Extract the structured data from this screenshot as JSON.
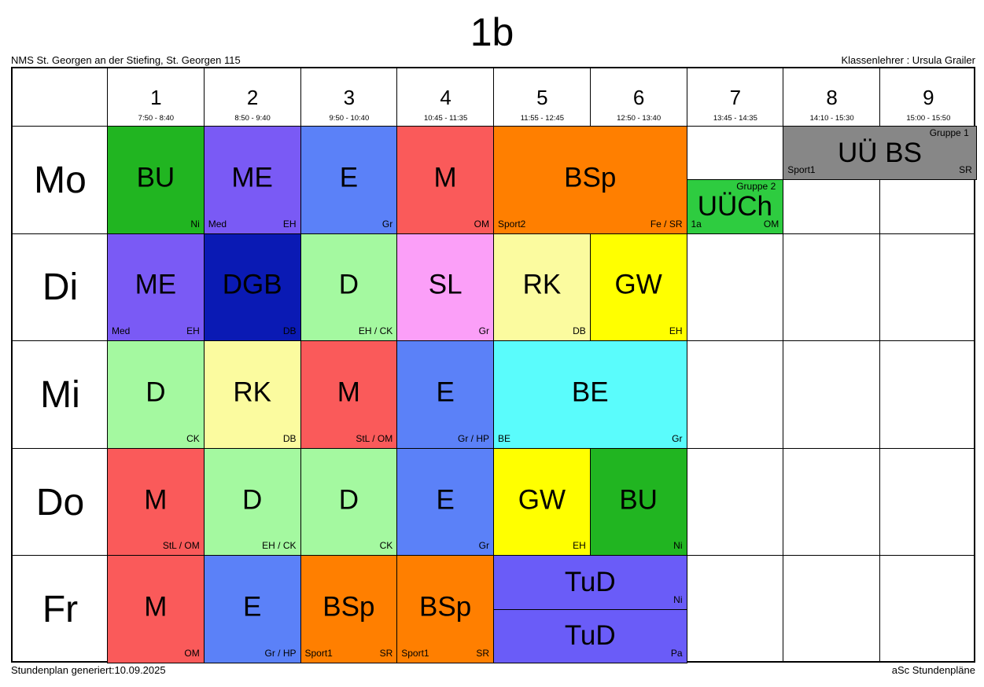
{
  "title": "1b",
  "school": "NMS St. Georgen an der Stiefing, St. Georgen 115",
  "teacher": "Klassenlehrer : Ursula Grailer",
  "footer_left": "Stundenplan generiert:10.09.2025",
  "footer_right": "aSc Stundenpläne",
  "periods": [
    {
      "num": "1",
      "time": "7:50 - 8:40"
    },
    {
      "num": "2",
      "time": "8:50 - 9:40"
    },
    {
      "num": "3",
      "time": "9:50 - 10:40"
    },
    {
      "num": "4",
      "time": "10:45 - 11:35"
    },
    {
      "num": "5",
      "time": "11:55 - 12:45"
    },
    {
      "num": "6",
      "time": "12:50 - 13:40"
    },
    {
      "num": "7",
      "time": "13:45 - 14:35"
    },
    {
      "num": "8",
      "time": "14:10 - 15:30"
    },
    {
      "num": "9",
      "time": "15:00 - 15:50"
    }
  ],
  "days": [
    "Mo",
    "Di",
    "Mi",
    "Do",
    "Fr"
  ],
  "lessons": [
    {
      "day": 0,
      "p": 1,
      "span": 1,
      "subject": "BU",
      "room": "",
      "teacher": "Ni",
      "group": "",
      "color": "#21b521",
      "text_color": "#000000"
    },
    {
      "day": 0,
      "p": 2,
      "span": 1,
      "subject": "ME",
      "room": "Med",
      "teacher": "EH",
      "group": "",
      "color": "#7a5af5",
      "text_color": "#000000"
    },
    {
      "day": 0,
      "p": 3,
      "span": 1,
      "subject": "E",
      "room": "",
      "teacher": "Gr",
      "group": "",
      "color": "#5b81f8",
      "text_color": "#000000"
    },
    {
      "day": 0,
      "p": 4,
      "span": 1,
      "subject": "M",
      "room": "",
      "teacher": "OM",
      "group": "",
      "color": "#fa5a5a",
      "text_color": "#000000"
    },
    {
      "day": 0,
      "p": 5,
      "span": 2,
      "subject": "BSp",
      "room": "Sport2",
      "teacher": "Fe / SR",
      "group": "",
      "color": "#ff7f00",
      "text_color": "#000000"
    },
    {
      "day": 0,
      "p": 7,
      "span": 1,
      "half": "bottom",
      "subject": "UÜCh",
      "room": "1a",
      "teacher": "OM",
      "group": "Gruppe 2",
      "color": "#2ecc40",
      "text_color": "#000000"
    },
    {
      "day": 0,
      "p": 8,
      "span": 2,
      "half": "top",
      "subject": "UÜ BS",
      "room": "Sport1",
      "teacher": "SR",
      "group": "Gruppe 1",
      "color": "#878787",
      "text_color": "#000000"
    },
    {
      "day": 1,
      "p": 1,
      "span": 1,
      "subject": "ME",
      "room": "Med",
      "teacher": "EH",
      "group": "",
      "color": "#7a5af5",
      "text_color": "#000000"
    },
    {
      "day": 1,
      "p": 2,
      "span": 1,
      "subject": "DGB",
      "room": "",
      "teacher": "DB",
      "group": "",
      "color": "#0a1ab4",
      "text_color": "#000000"
    },
    {
      "day": 1,
      "p": 3,
      "span": 1,
      "subject": "D",
      "room": "",
      "teacher": "EH / CK",
      "group": "",
      "color": "#a4f9a0",
      "text_color": "#000000"
    },
    {
      "day": 1,
      "p": 4,
      "span": 1,
      "subject": "SL",
      "room": "",
      "teacher": "Gr",
      "group": "",
      "color": "#fb9ff8",
      "text_color": "#000000"
    },
    {
      "day": 1,
      "p": 5,
      "span": 1,
      "subject": "RK",
      "room": "",
      "teacher": "DB",
      "group": "",
      "color": "#fbfb9f",
      "text_color": "#000000"
    },
    {
      "day": 1,
      "p": 6,
      "span": 1,
      "subject": "GW",
      "room": "",
      "teacher": "EH",
      "group": "",
      "color": "#ffff00",
      "text_color": "#000000"
    },
    {
      "day": 2,
      "p": 1,
      "span": 1,
      "subject": "D",
      "room": "",
      "teacher": "CK",
      "group": "",
      "color": "#a4f9a0",
      "text_color": "#000000"
    },
    {
      "day": 2,
      "p": 2,
      "span": 1,
      "subject": "RK",
      "room": "",
      "teacher": "DB",
      "group": "",
      "color": "#fbfb9f",
      "text_color": "#000000"
    },
    {
      "day": 2,
      "p": 3,
      "span": 1,
      "subject": "M",
      "room": "",
      "teacher": "StL / OM",
      "group": "",
      "color": "#fa5a5a",
      "text_color": "#000000"
    },
    {
      "day": 2,
      "p": 4,
      "span": 1,
      "subject": "E",
      "room": "",
      "teacher": "Gr / HP",
      "group": "",
      "color": "#5b81f8",
      "text_color": "#000000"
    },
    {
      "day": 2,
      "p": 5,
      "span": 2,
      "subject": "BE",
      "room": "BE",
      "teacher": "Gr",
      "group": "",
      "color": "#5afcfc",
      "text_color": "#000000"
    },
    {
      "day": 3,
      "p": 1,
      "span": 1,
      "subject": "M",
      "room": "",
      "teacher": "StL / OM",
      "group": "",
      "color": "#fa5a5a",
      "text_color": "#000000"
    },
    {
      "day": 3,
      "p": 2,
      "span": 1,
      "subject": "D",
      "room": "",
      "teacher": "EH / CK",
      "group": "",
      "color": "#a4f9a0",
      "text_color": "#000000"
    },
    {
      "day": 3,
      "p": 3,
      "span": 1,
      "subject": "D",
      "room": "",
      "teacher": "CK",
      "group": "",
      "color": "#a4f9a0",
      "text_color": "#000000"
    },
    {
      "day": 3,
      "p": 4,
      "span": 1,
      "subject": "E",
      "room": "",
      "teacher": "Gr",
      "group": "",
      "color": "#5b81f8",
      "text_color": "#000000"
    },
    {
      "day": 3,
      "p": 5,
      "span": 1,
      "subject": "GW",
      "room": "",
      "teacher": "EH",
      "group": "",
      "color": "#ffff00",
      "text_color": "#000000"
    },
    {
      "day": 3,
      "p": 6,
      "span": 1,
      "subject": "BU",
      "room": "",
      "teacher": "Ni",
      "group": "",
      "color": "#21b521",
      "text_color": "#000000"
    },
    {
      "day": 4,
      "p": 1,
      "span": 1,
      "subject": "M",
      "room": "",
      "teacher": "OM",
      "group": "",
      "color": "#fa5a5a",
      "text_color": "#000000"
    },
    {
      "day": 4,
      "p": 2,
      "span": 1,
      "subject": "E",
      "room": "",
      "teacher": "Gr / HP",
      "group": "",
      "color": "#5b81f8",
      "text_color": "#000000"
    },
    {
      "day": 4,
      "p": 3,
      "span": 1,
      "subject": "BSp",
      "room": "Sport1",
      "teacher": "SR",
      "group": "",
      "color": "#ff7f00",
      "text_color": "#000000"
    },
    {
      "day": 4,
      "p": 4,
      "span": 1,
      "subject": "BSp",
      "room": "Sport1",
      "teacher": "SR",
      "group": "",
      "color": "#ff7f00",
      "text_color": "#000000"
    },
    {
      "day": 4,
      "p": 5,
      "span": 2,
      "half": "top",
      "subject": "TuD",
      "room": "",
      "teacher": "Ni",
      "group": "",
      "color": "#6a5cf8",
      "text_color": "#000000"
    },
    {
      "day": 4,
      "p": 5,
      "span": 2,
      "half": "bottom",
      "subject": "TuD",
      "room": "",
      "teacher": "Pa",
      "group": "",
      "color": "#6a5cf8",
      "text_color": "#000000"
    }
  ]
}
